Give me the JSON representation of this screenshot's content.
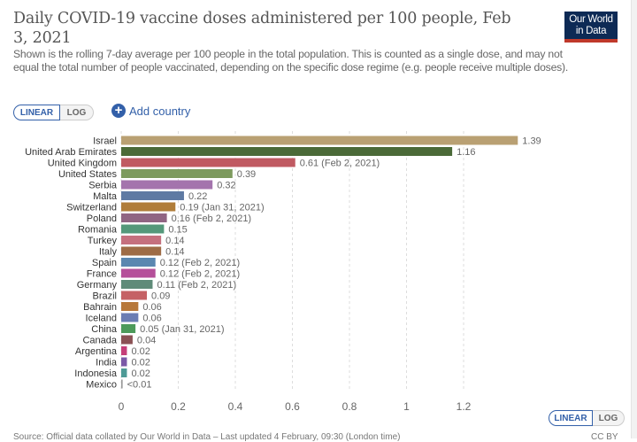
{
  "header": {
    "title": "Daily COVID-19 vaccine doses administered per 100 people, Feb 3, 2021",
    "subtitle": "Shown is the rolling 7-day average per 100 people in the total population. This is counted as a single dose, and may not equal the total number of people vaccinated, depending on the specific dose regime (e.g. people receive multiple doses).",
    "logo_line1": "Our World",
    "logo_line2": "in Data"
  },
  "controls": {
    "linear_label": "LINEAR",
    "log_label": "LOG",
    "add_country_label": "Add country",
    "add_icon": "plus-circle-icon"
  },
  "footer": {
    "source": "Source: Official data collated by Our World in Data – Last updated 4 February, 09:30 (London time)",
    "license": "CC BY"
  },
  "chart_data": {
    "type": "bar",
    "orientation": "horizontal",
    "title": "Daily COVID-19 vaccine doses administered per 100 people, Feb 3, 2021",
    "xlabel": "",
    "ylabel": "",
    "xlim": [
      0,
      1.4
    ],
    "x_ticks": [
      "0",
      "0.2",
      "0.4",
      "0.6",
      "0.8",
      "1",
      "1.2"
    ],
    "x_tick_values": [
      0,
      0.2,
      0.4,
      0.6,
      0.8,
      1,
      1.2
    ],
    "grid": true,
    "categories": [
      "Israel",
      "United Arab Emirates",
      "United Kingdom",
      "United States",
      "Serbia",
      "Malta",
      "Switzerland",
      "Poland",
      "Romania",
      "Turkey",
      "Italy",
      "Spain",
      "France",
      "Germany",
      "Brazil",
      "Bahrain",
      "Iceland",
      "China",
      "Canada",
      "Argentina",
      "India",
      "Indonesia",
      "Mexico"
    ],
    "values": [
      1.39,
      1.16,
      0.61,
      0.39,
      0.32,
      0.22,
      0.19,
      0.16,
      0.15,
      0.14,
      0.14,
      0.12,
      0.12,
      0.11,
      0.09,
      0.06,
      0.06,
      0.05,
      0.04,
      0.02,
      0.02,
      0.02,
      0.005
    ],
    "value_labels": [
      "1.39",
      "1.16",
      "0.61 (Feb 2, 2021)",
      "0.39",
      "0.32",
      "0.22",
      "0.19 (Jan 31, 2021)",
      "0.16 (Feb 2, 2021)",
      "0.15",
      "0.14",
      "0.14",
      "0.12 (Feb 2, 2021)",
      "0.12 (Feb 2, 2021)",
      "0.11 (Feb 2, 2021)",
      "0.09",
      "0.06",
      "0.06",
      "0.05 (Jan 31, 2021)",
      "0.04",
      "0.02",
      "0.02",
      "0.02",
      "<0.01"
    ],
    "colors": [
      "#b9a073",
      "#4b6a38",
      "#c05a62",
      "#7d9a5e",
      "#a474ad",
      "#5e7aa3",
      "#b07d3a",
      "#906583",
      "#54987a",
      "#c5707e",
      "#9e6c46",
      "#5b87b0",
      "#b5509a",
      "#5f8b79",
      "#c56165",
      "#b77739",
      "#6b7db3",
      "#4d9a5a",
      "#8a5154",
      "#c53e78",
      "#7b59a7",
      "#4e9a96",
      "#999999"
    ]
  }
}
